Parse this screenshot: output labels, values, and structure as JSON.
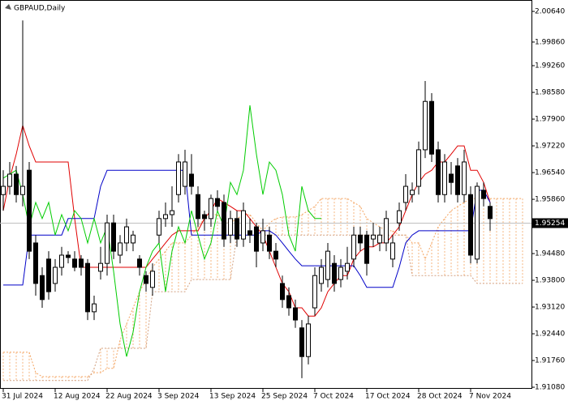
{
  "chart_data": {
    "type": "candlestick",
    "title": "GBPAUD,Daily",
    "categories": [
      "31 Jul 2024",
      null,
      null,
      null,
      null,
      null,
      null,
      null,
      "12 Aug 2024",
      null,
      null,
      null,
      null,
      null,
      null,
      null,
      "22 Aug 2024",
      null,
      null,
      null,
      null,
      null,
      null,
      null,
      "3 Sep 2024",
      null,
      null,
      null,
      null,
      null,
      null,
      null,
      "13 Sep 2024",
      null,
      null,
      null,
      null,
      null,
      null,
      null,
      "25 Sep 2024",
      null,
      null,
      null,
      null,
      null,
      null,
      null,
      "7 Oct 2024",
      null,
      null,
      null,
      null,
      null,
      null,
      null,
      "17 Oct 2024",
      null,
      null,
      null,
      null,
      null,
      null,
      null,
      "28 Oct 2024",
      null,
      null,
      null,
      null,
      null,
      null,
      null,
      "7 Nov 2024",
      null,
      null,
      null,
      null,
      null,
      null,
      null,
      null
    ],
    "open": [
      1.9598,
      1.9619,
      1.965,
      1.9598,
      1.966,
      1.9475,
      1.9392,
      1.9434,
      1.9372,
      1.9413,
      1.9444,
      1.9434,
      1.9434,
      1.9423,
      1.93,
      1.9403,
      1.9423,
      1.9526,
      1.9444,
      1.9475,
      1.9475,
      1.9434,
      1.9392,
      1.9362,
      1.9495,
      1.9537,
      1.9547,
      1.9598,
      1.9619,
      1.965,
      1.9598,
      1.9547,
      1.9537,
      1.9588,
      1.9578,
      1.9495,
      1.9537,
      1.9485,
      1.9506,
      1.9516,
      1.9475,
      1.9495,
      1.9454,
      1.9372,
      1.9341,
      1.931,
      1.9259,
      1.9186,
      1.931,
      1.9372,
      1.9382,
      1.9423,
      1.9382,
      1.9403,
      1.9434,
      1.9495,
      1.9495,
      1.9485,
      1.9475,
      1.9475,
      1.9434,
      1.9526,
      1.9578,
      1.9598,
      1.9619,
      1.9712,
      1.9835,
      1.9712,
      1.9598,
      1.965,
      1.9671,
      1.9598,
      1.9598,
      1.9434,
      1.9609,
      1.9568,
      null,
      null,
      null,
      null,
      null
    ],
    "high": [
      1.966,
      1.9681,
      1.9671,
      2.0041,
      1.9681,
      1.9495,
      1.9413,
      1.9454,
      1.9434,
      1.9465,
      1.9454,
      1.9454,
      1.9444,
      1.9434,
      1.9341,
      1.9465,
      1.9547,
      1.9547,
      1.9495,
      1.9537,
      1.9506,
      1.9444,
      1.9403,
      1.9423,
      1.9557,
      1.9578,
      1.9619,
      1.9701,
      1.9712,
      1.9701,
      1.9619,
      1.9557,
      1.9598,
      1.9609,
      1.9598,
      1.9557,
      1.9557,
      1.9578,
      1.9537,
      1.9526,
      1.9537,
      1.9516,
      1.9475,
      1.9392,
      1.9362,
      1.9331,
      1.9279,
      1.929,
      1.9413,
      1.9434,
      1.9475,
      1.9444,
      1.9434,
      1.9465,
      1.9516,
      1.9516,
      1.9506,
      1.9526,
      1.9516,
      1.9557,
      1.9495,
      1.9578,
      1.965,
      1.9629,
      1.9733,
      1.9887,
      1.9856,
      1.9733,
      1.9701,
      1.9681,
      1.9691,
      1.9712,
      1.9619,
      1.9629,
      1.9629,
      1.9578,
      null,
      null,
      null,
      null,
      null
    ],
    "low": [
      1.9557,
      1.9598,
      1.9578,
      1.9568,
      1.9434,
      1.9341,
      1.931,
      1.9331,
      1.9351,
      1.9392,
      1.9423,
      1.9403,
      1.9392,
      1.9279,
      1.9279,
      1.9382,
      1.9392,
      1.9434,
      1.9423,
      1.9454,
      1.9454,
      1.9392,
      1.9351,
      1.9341,
      1.9475,
      1.9516,
      1.9516,
      1.9578,
      1.9598,
      1.9598,
      1.9516,
      1.9506,
      1.9516,
      1.9557,
      1.9465,
      1.9475,
      1.9465,
      1.9465,
      1.9475,
      1.9413,
      1.9454,
      1.9434,
      1.9413,
      1.931,
      1.929,
      1.9259,
      1.9131,
      1.9166,
      1.929,
      1.9351,
      1.9362,
      1.9351,
      1.9362,
      1.9382,
      1.9413,
      1.9454,
      1.9392,
      1.9465,
      1.9454,
      1.9454,
      1.9413,
      1.9506,
      1.9557,
      1.9578,
      1.9598,
      1.9691,
      1.9681,
      1.9578,
      1.9578,
      1.9598,
      1.9578,
      1.9578,
      1.9423,
      1.9423,
      1.9568,
      1.9506,
      null,
      null,
      null,
      null,
      null
    ],
    "close": [
      1.9619,
      1.965,
      1.9598,
      1.9619,
      1.9454,
      1.9372,
      1.9331,
      1.9351,
      1.9413,
      1.9444,
      1.9438,
      1.9413,
      1.9413,
      1.93,
      1.932,
      1.9423,
      1.9526,
      1.9454,
      1.9475,
      1.9516,
      1.9495,
      1.9413,
      1.9372,
      1.9403,
      1.9537,
      1.9547,
      1.9557,
      1.9681,
      1.9681,
      1.9619,
      1.9537,
      1.9537,
      1.9588,
      1.9568,
      1.9485,
      1.9537,
      1.9485,
      1.9557,
      1.9495,
      1.9454,
      1.9506,
      1.9454,
      1.9434,
      1.9331,
      1.931,
      1.9279,
      1.9186,
      1.9269,
      1.9392,
      1.9413,
      1.9454,
      1.9372,
      1.9413,
      1.9423,
      1.9495,
      1.9475,
      1.9423,
      1.9495,
      1.9495,
      1.9537,
      1.9475,
      1.9557,
      1.9619,
      1.9609,
      1.9712,
      1.9835,
      1.9701,
      1.9598,
      1.9681,
      1.9629,
      1.9598,
      1.9681,
      1.9444,
      1.9619,
      1.9588,
      1.9537,
      null,
      null,
      null,
      null,
      null
    ],
    "cloud": [
      {
        "color": "#f4a460",
        "values": [
          1.9197,
          1.9197,
          1.9197,
          1.9197,
          1.9197,
          1.9145,
          1.9135,
          1.9135,
          1.9135,
          1.9135,
          1.9135,
          1.9135,
          1.9135,
          1.9135,
          1.9145,
          1.9145,
          1.9156,
          1.9156,
          1.9228,
          1.9269,
          1.931,
          1.9351,
          1.9382,
          1.9413,
          1.9434,
          1.9454,
          1.9475,
          1.9475,
          1.9475,
          1.9495,
          1.9516,
          1.9537,
          1.9547,
          1.9547,
          1.9526,
          1.9526,
          1.9537,
          1.9547,
          1.9547,
          1.9526,
          1.9506,
          1.9526,
          1.9537,
          1.9541,
          1.9541,
          1.9541,
          1.9547,
          1.9557,
          1.9568,
          1.9588,
          1.9588,
          1.9588,
          1.9588,
          1.9588,
          1.9578,
          1.9568,
          1.9537,
          1.9526,
          1.9516,
          1.9506,
          1.9506,
          1.9495,
          1.9495,
          1.9475,
          1.9475,
          1.9434,
          1.9475,
          1.9516,
          1.9537,
          1.9557,
          1.9568,
          1.9578,
          1.9588,
          1.9588,
          1.9588,
          1.9588,
          1.9588,
          1.9588,
          1.9588,
          1.9588,
          1.9588
        ]
      },
      {
        "color": "#d2a080",
        "values": [
          1.9125,
          1.9125,
          1.9125,
          1.9125,
          1.9125,
          1.9125,
          1.9125,
          1.9125,
          1.9125,
          1.9125,
          1.9125,
          1.9125,
          1.9125,
          1.9125,
          1.9156,
          1.9207,
          1.9207,
          1.9207,
          1.9207,
          1.9207,
          1.9207,
          1.9207,
          1.9207,
          1.9351,
          1.9351,
          1.9351,
          1.9351,
          1.9351,
          1.9351,
          1.9382,
          1.9382,
          1.9382,
          1.9382,
          1.9382,
          1.9382,
          1.9382,
          1.9495,
          1.9495,
          1.9495,
          1.9495,
          1.9495,
          1.9495,
          1.9495,
          1.9495,
          1.9495,
          1.9495,
          1.9495,
          1.9495,
          1.9495,
          1.9495,
          1.9495,
          1.9495,
          1.9495,
          1.9495,
          1.9495,
          1.9495,
          1.9495,
          1.9495,
          1.9495,
          1.9495,
          1.9495,
          1.9495,
          1.9495,
          1.9392,
          1.9392,
          1.9392,
          1.9392,
          1.9392,
          1.9392,
          1.9392,
          1.9392,
          1.9392,
          1.9392,
          1.9372,
          1.9372,
          1.9372,
          1.9372,
          1.9372,
          1.9372,
          1.9372,
          1.9372
        ]
      }
    ],
    "lines": [
      {
        "color": "#e00000",
        "values": [
          1.9557,
          1.964,
          1.9701,
          1.9774,
          1.9722,
          1.9681,
          1.9681,
          1.9681,
          1.9681,
          1.9681,
          1.9681,
          1.9537,
          1.9413,
          1.9413,
          1.9413,
          1.9413,
          1.9413,
          1.9413,
          1.9413,
          1.9413,
          1.9413,
          1.9413,
          1.9413,
          1.9434,
          1.9454,
          1.9475,
          1.9495,
          1.9506,
          1.9506,
          1.9506,
          1.9506,
          1.9537,
          1.9557,
          1.9588,
          1.9578,
          1.9568,
          1.9557,
          1.9557,
          1.9537,
          1.9516,
          1.9495,
          1.9454,
          1.9413,
          1.9372,
          1.9351,
          1.931,
          1.931,
          1.9289,
          1.9289,
          1.931,
          1.9351,
          1.9372,
          1.9392,
          1.9392,
          1.9434,
          1.9454,
          1.9465,
          1.9465,
          1.9475,
          1.9475,
          1.9495,
          1.9516,
          1.9557,
          1.9598,
          1.9629,
          1.965,
          1.966,
          1.9681,
          1.9681,
          1.9701,
          1.9722,
          1.9722,
          1.966,
          1.966,
          1.9629,
          1.9578,
          null,
          null,
          null,
          null,
          null
        ]
      },
      {
        "color": "#0000c8",
        "values": [
          1.9368,
          1.9368,
          1.9368,
          1.9368,
          1.9495,
          1.9495,
          1.9495,
          1.9495,
          1.9495,
          1.9495,
          1.9537,
          1.9537,
          1.9537,
          1.9537,
          1.9537,
          1.9619,
          1.966,
          1.966,
          1.966,
          1.966,
          1.966,
          1.966,
          1.966,
          1.966,
          1.966,
          1.966,
          1.966,
          1.966,
          1.966,
          1.9495,
          1.9495,
          1.9495,
          1.9495,
          1.9495,
          1.9495,
          1.9495,
          1.9495,
          1.9495,
          1.9495,
          1.9495,
          1.9506,
          1.9506,
          1.9495,
          1.9475,
          1.9454,
          1.9434,
          1.9417,
          1.9417,
          1.9417,
          1.9417,
          1.9417,
          1.9417,
          1.9417,
          1.9417,
          1.9417,
          1.9392,
          1.9362,
          1.9362,
          1.9362,
          1.9362,
          1.9362,
          1.9413,
          1.9475,
          1.9495,
          1.9506,
          1.9506,
          1.9506,
          1.9506,
          1.9506,
          1.9506,
          1.9506,
          1.9506,
          1.9506,
          1.9609,
          1.9609,
          1.9578,
          null,
          null,
          null,
          null,
          null
        ]
      },
      {
        "color": "#00cc00",
        "values": [
          1.964,
          1.965,
          1.966,
          1.9598,
          1.9516,
          1.9578,
          1.9537,
          1.9578,
          1.9495,
          1.9547,
          1.9506,
          1.9557,
          1.9537,
          1.9475,
          1.9537,
          1.9475,
          1.9516,
          1.9403,
          1.9269,
          1.9186,
          1.9248,
          1.9351,
          1.9413,
          1.9454,
          1.9475,
          1.9351,
          1.9454,
          1.9516,
          1.9475,
          1.9557,
          1.9495,
          1.9434,
          1.9475,
          1.9557,
          1.9516,
          1.9629,
          1.9598,
          1.966,
          1.9825,
          1.9701,
          1.9598,
          1.9681,
          1.966,
          1.9598,
          1.9495,
          1.9454,
          1.9619,
          1.9557,
          1.9537,
          1.9537,
          null,
          null,
          null,
          null,
          null,
          null,
          null,
          null,
          null,
          null,
          null,
          null,
          null,
          null,
          null,
          null,
          null,
          null,
          null,
          null,
          null,
          null,
          null,
          null,
          null,
          null,
          null,
          null,
          null,
          null,
          null
        ]
      }
    ],
    "last_price": 1.95254,
    "ylim": [
      1.9104,
      2.0093
    ],
    "yticks": [
      {
        "value": 2.0064,
        "label": "2.00640"
      },
      {
        "value": 1.9986,
        "label": "1.99860"
      },
      {
        "value": 1.9926,
        "label": "1.99260"
      },
      {
        "value": 1.9858,
        "label": "1.98580"
      },
      {
        "value": 1.979,
        "label": "1.97900"
      },
      {
        "value": 1.9722,
        "label": "1.97220"
      },
      {
        "value": 1.9654,
        "label": "1.96540"
      },
      {
        "value": 1.9586,
        "label": "1.95860"
      },
      {
        "value": 1.9448,
        "label": "1.94480"
      },
      {
        "value": 1.938,
        "label": "1.93800"
      },
      {
        "value": 1.9312,
        "label": "1.93120"
      },
      {
        "value": 1.9244,
        "label": "1.92440"
      },
      {
        "value": 1.9176,
        "label": "1.91760"
      },
      {
        "value": 1.9108,
        "label": "1.91080"
      }
    ]
  }
}
